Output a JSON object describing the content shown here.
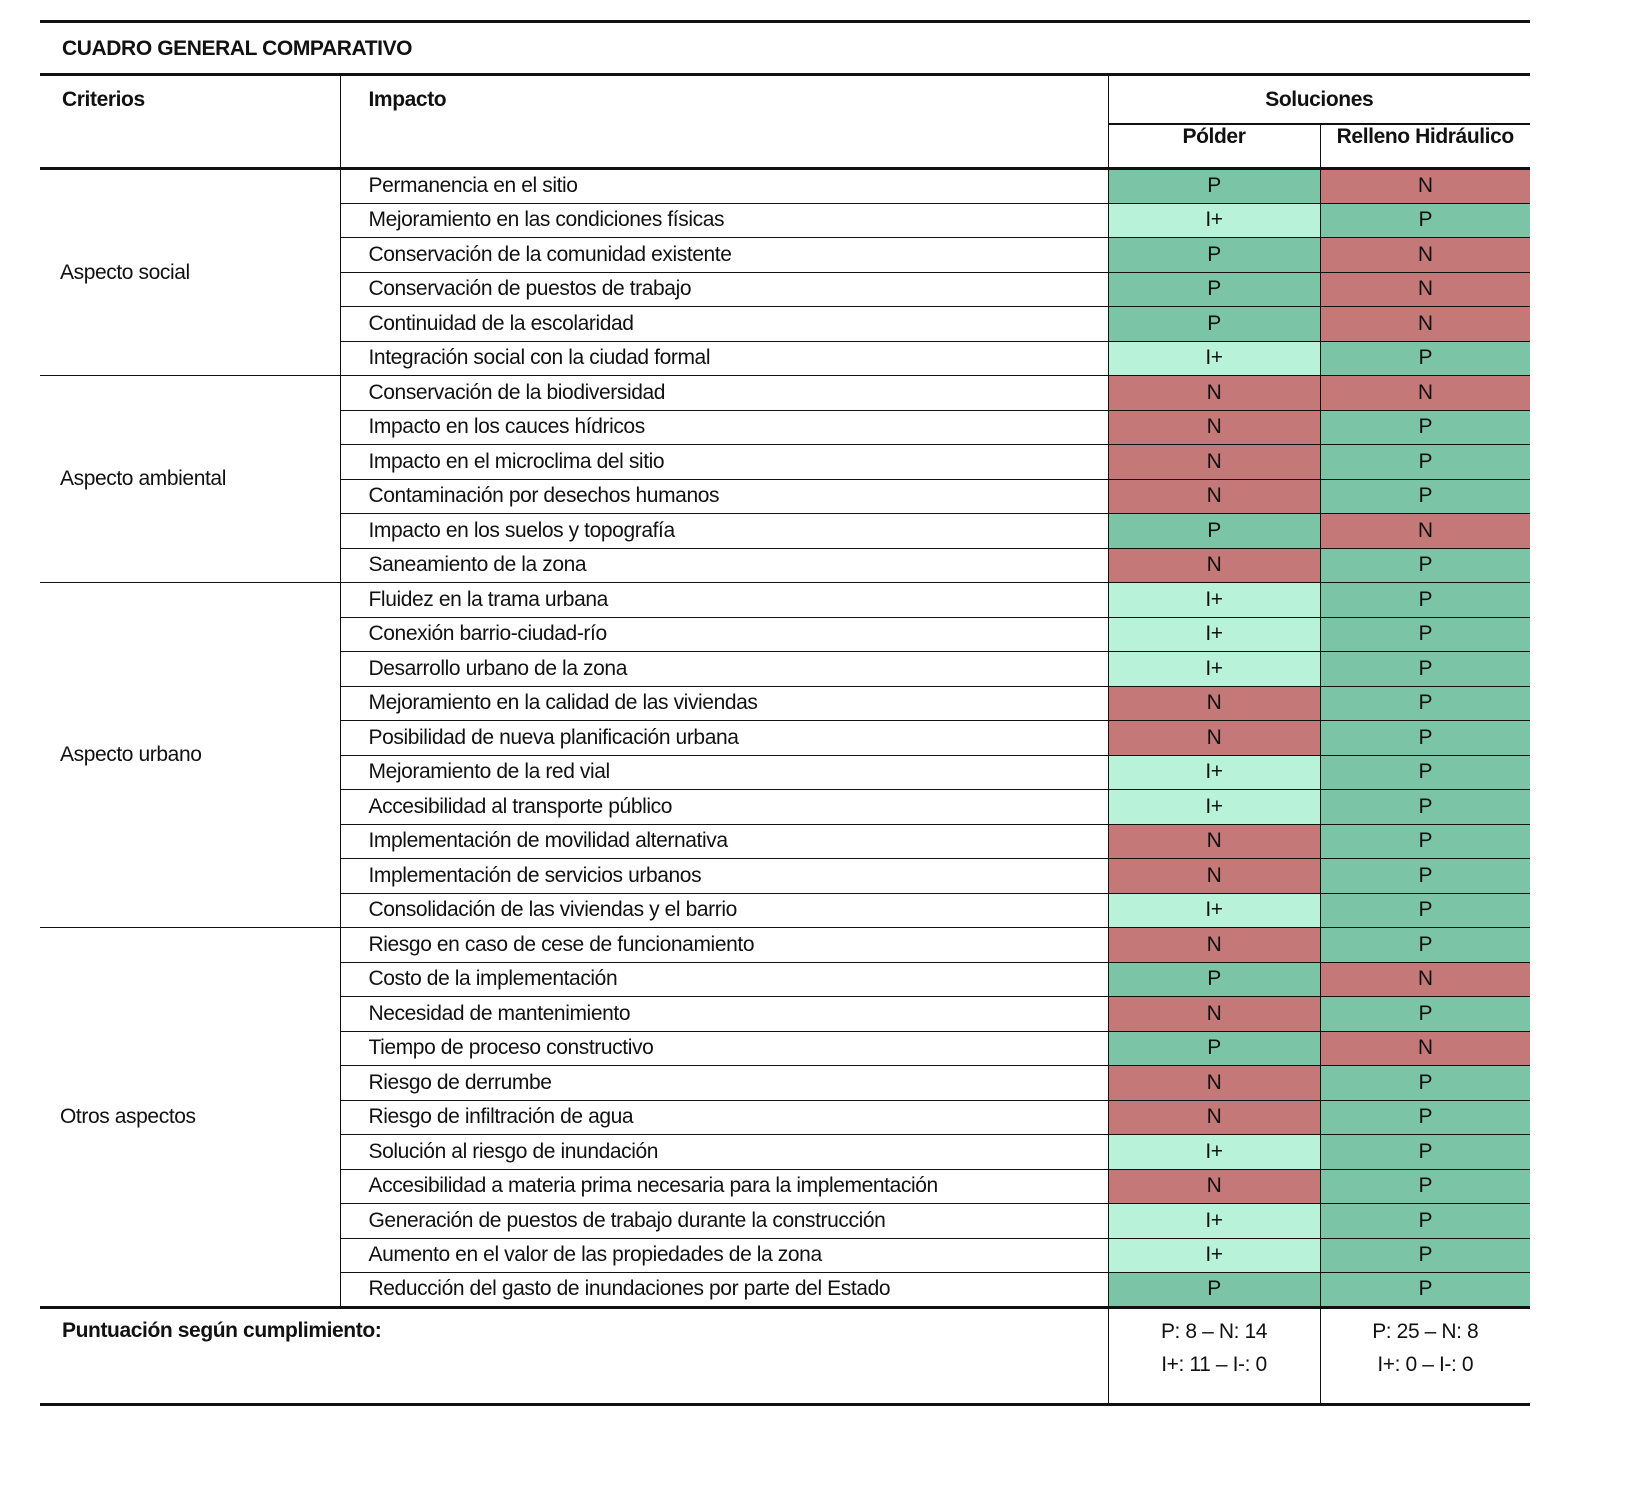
{
  "title": "CUADRO GENERAL COMPARATIVO",
  "headers": {
    "criterios": "Criterios",
    "impacto": "Impacto",
    "soluciones": "Soluciones",
    "polder": "Pólder",
    "relleno": "Relleno Hidráulico"
  },
  "colors": {
    "P": "#7bc4a6",
    "N": "#c47878",
    "I+": "#b8f2d9"
  },
  "groups": [
    {
      "name": "Aspecto social",
      "rows": [
        [
          "Permanencia en el sitio",
          "P",
          "N"
        ],
        [
          "Mejoramiento en las condiciones físicas",
          "I+",
          "P"
        ],
        [
          "Conservación de la comunidad existente",
          "P",
          "N"
        ],
        [
          "Conservación de puestos de trabajo",
          "P",
          "N"
        ],
        [
          "Continuidad de la escolaridad",
          "P",
          "N"
        ],
        [
          "Integración social con la ciudad formal",
          "I+",
          "P"
        ]
      ]
    },
    {
      "name": "Aspecto ambiental",
      "rows": [
        [
          "Conservación de la biodiversidad",
          "N",
          "N"
        ],
        [
          "Impacto en los cauces hídricos",
          "N",
          "P"
        ],
        [
          "Impacto en el microclima del sitio",
          "N",
          "P"
        ],
        [
          "Contaminación por desechos humanos",
          "N",
          "P"
        ],
        [
          "Impacto en los suelos y topografía",
          "P",
          "N"
        ],
        [
          "Saneamiento de la zona",
          "N",
          "P"
        ]
      ]
    },
    {
      "name": "Aspecto urbano",
      "rows": [
        [
          "Fluidez en la trama urbana",
          "I+",
          "P"
        ],
        [
          "Conexión barrio-ciudad-río",
          "I+",
          "P"
        ],
        [
          "Desarrollo urbano de la zona",
          "I+",
          "P"
        ],
        [
          "Mejoramiento en la calidad de las viviendas",
          "N",
          "P"
        ],
        [
          "Posibilidad de nueva planificación urbana",
          "N",
          "P"
        ],
        [
          "Mejoramiento de la red vial",
          "I+",
          "P"
        ],
        [
          "Accesibilidad al transporte público",
          "I+",
          "P"
        ],
        [
          "Implementación de movilidad alternativa",
          "N",
          "P"
        ],
        [
          "Implementación de servicios urbanos",
          "N",
          "P"
        ],
        [
          "Consolidación de las viviendas y el barrio",
          "I+",
          "P"
        ]
      ]
    },
    {
      "name": "Otros aspectos",
      "rows": [
        [
          "Riesgo en caso de cese de funcionamiento",
          "N",
          "P"
        ],
        [
          "Costo de la implementación",
          "P",
          "N"
        ],
        [
          "Necesidad de mantenimiento",
          "N",
          "P"
        ],
        [
          "Tiempo de proceso constructivo",
          "P",
          "N"
        ],
        [
          "Riesgo de derrumbe",
          "N",
          "P"
        ],
        [
          "Riesgo de infiltración de agua",
          "N",
          "P"
        ],
        [
          "Solución al riesgo de inundación",
          "I+",
          "P"
        ],
        [
          "Accesibilidad a materia prima necesaria para la implementación",
          "N",
          "P"
        ],
        [
          "Generación de puestos de trabajo durante la construcción",
          "I+",
          "P"
        ],
        [
          "Aumento en el valor de las propiedades de la zona",
          "I+",
          "P"
        ],
        [
          "Reducción del gasto de inundaciones por parte del Estado",
          "P",
          "P"
        ]
      ]
    }
  ],
  "footer": {
    "label": "Puntuación según cumplimiento:",
    "polder": [
      "P: 8  –  N: 14",
      "I+: 11  –  I-: 0"
    ],
    "relleno": [
      "P: 25  –  N: 8",
      "I+: 0  –  I-: 0"
    ]
  }
}
